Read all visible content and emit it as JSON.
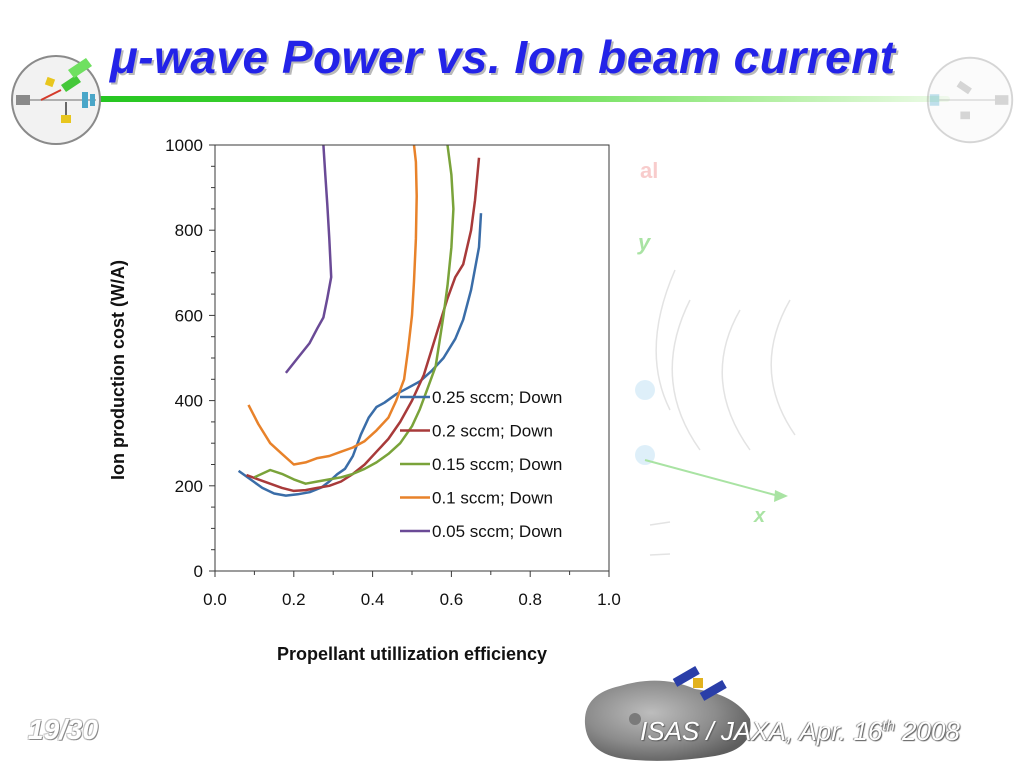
{
  "slide": {
    "title": "μ-wave Power vs. Ion beam current",
    "number": "19/30",
    "footer_prefix": "ISAS / JAXA, Apr. 16",
    "footer_sup": "th",
    "footer_suffix": " 2008",
    "ghost_text": {
      "top": "al",
      "y": "y",
      "x": "x"
    }
  },
  "colors": {
    "title": "#2323e8",
    "title_bar": "#22c41f",
    "series": [
      "#3a6da8",
      "#a83a3a",
      "#7aa33a",
      "#e8822a",
      "#6a4a96"
    ]
  },
  "chart_data": {
    "type": "line",
    "xlabel": "Propellant utillization efficiency",
    "ylabel": "Ion production cost (W/A)",
    "xlim": [
      0,
      1
    ],
    "ylim": [
      0,
      1000
    ],
    "xticks": [
      "0.0",
      "0.2",
      "0.4",
      "0.6",
      "0.8",
      "1.0"
    ],
    "yticks": [
      "0",
      "200",
      "400",
      "600",
      "800",
      "1000"
    ],
    "legend_position": "lower-right",
    "series": [
      {
        "name": "0.25 sccm; Down",
        "color": "#3a6da8",
        "points": [
          [
            0.06,
            235
          ],
          [
            0.09,
            215
          ],
          [
            0.12,
            195
          ],
          [
            0.15,
            182
          ],
          [
            0.18,
            177
          ],
          [
            0.21,
            180
          ],
          [
            0.24,
            185
          ],
          [
            0.27,
            196
          ],
          [
            0.29,
            210
          ],
          [
            0.31,
            227
          ],
          [
            0.33,
            240
          ],
          [
            0.35,
            270
          ],
          [
            0.37,
            320
          ],
          [
            0.39,
            360
          ],
          [
            0.41,
            385
          ],
          [
            0.43,
            395
          ],
          [
            0.46,
            415
          ],
          [
            0.49,
            430
          ],
          [
            0.52,
            445
          ],
          [
            0.55,
            470
          ],
          [
            0.58,
            500
          ],
          [
            0.61,
            545
          ],
          [
            0.63,
            590
          ],
          [
            0.65,
            660
          ],
          [
            0.67,
            760
          ],
          [
            0.675,
            840
          ]
        ]
      },
      {
        "name": "0.2 sccm; Down",
        "color": "#a83a3a",
        "points": [
          [
            0.08,
            225
          ],
          [
            0.11,
            215
          ],
          [
            0.14,
            205
          ],
          [
            0.17,
            195
          ],
          [
            0.2,
            188
          ],
          [
            0.23,
            190
          ],
          [
            0.26,
            195
          ],
          [
            0.29,
            200
          ],
          [
            0.32,
            210
          ],
          [
            0.35,
            228
          ],
          [
            0.38,
            250
          ],
          [
            0.41,
            280
          ],
          [
            0.44,
            310
          ],
          [
            0.47,
            350
          ],
          [
            0.5,
            400
          ],
          [
            0.53,
            460
          ],
          [
            0.55,
            520
          ],
          [
            0.57,
            580
          ],
          [
            0.59,
            640
          ],
          [
            0.61,
            690
          ],
          [
            0.63,
            720
          ],
          [
            0.65,
            800
          ],
          [
            0.66,
            870
          ],
          [
            0.67,
            970
          ]
        ]
      },
      {
        "name": "0.15 sccm; Down",
        "color": "#7aa33a",
        "points": [
          [
            0.1,
            220
          ],
          [
            0.14,
            237
          ],
          [
            0.17,
            228
          ],
          [
            0.2,
            215
          ],
          [
            0.23,
            205
          ],
          [
            0.26,
            210
          ],
          [
            0.29,
            215
          ],
          [
            0.32,
            220
          ],
          [
            0.35,
            228
          ],
          [
            0.38,
            240
          ],
          [
            0.41,
            255
          ],
          [
            0.44,
            275
          ],
          [
            0.47,
            300
          ],
          [
            0.5,
            340
          ],
          [
            0.52,
            380
          ],
          [
            0.54,
            430
          ],
          [
            0.56,
            480
          ],
          [
            0.57,
            540
          ],
          [
            0.58,
            600
          ],
          [
            0.59,
            670
          ],
          [
            0.6,
            760
          ],
          [
            0.605,
            850
          ],
          [
            0.6,
            930
          ],
          [
            0.59,
            1000
          ]
        ]
      },
      {
        "name": "0.1 sccm; Down",
        "color": "#e8822a",
        "points": [
          [
            0.085,
            390
          ],
          [
            0.11,
            345
          ],
          [
            0.14,
            300
          ],
          [
            0.17,
            275
          ],
          [
            0.2,
            250
          ],
          [
            0.23,
            255
          ],
          [
            0.26,
            265
          ],
          [
            0.29,
            270
          ],
          [
            0.32,
            280
          ],
          [
            0.35,
            290
          ],
          [
            0.38,
            305
          ],
          [
            0.41,
            330
          ],
          [
            0.44,
            360
          ],
          [
            0.46,
            400
          ],
          [
            0.48,
            450
          ],
          [
            0.49,
            520
          ],
          [
            0.5,
            600
          ],
          [
            0.505,
            680
          ],
          [
            0.51,
            780
          ],
          [
            0.512,
            880
          ],
          [
            0.51,
            960
          ],
          [
            0.505,
            1000
          ]
        ]
      },
      {
        "name": "0.05 sccm; Down",
        "color": "#6a4a96",
        "points": [
          [
            0.18,
            465
          ],
          [
            0.21,
            500
          ],
          [
            0.24,
            535
          ],
          [
            0.26,
            570
          ],
          [
            0.275,
            595
          ],
          [
            0.285,
            640
          ],
          [
            0.295,
            690
          ],
          [
            0.29,
            780
          ],
          [
            0.285,
            860
          ],
          [
            0.28,
            930
          ],
          [
            0.275,
            1000
          ]
        ]
      }
    ]
  }
}
